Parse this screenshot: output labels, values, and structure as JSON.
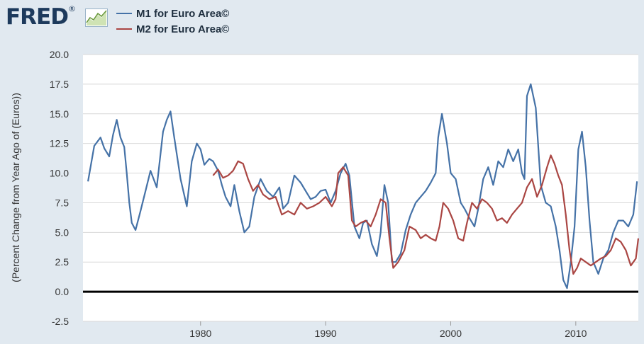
{
  "header": {
    "logo_text": "FRED",
    "logo_mark": "®"
  },
  "colors": {
    "m1": "#4572a7",
    "m2": "#aa4643",
    "zero_line": "#000000",
    "grid": "#d8d8d8",
    "plot_bg": "#ffffff",
    "page_bg": "#e1e9f0"
  },
  "icons": [
    "fred-logo-chart-icon"
  ],
  "chart_data": {
    "type": "line",
    "title": "",
    "xlabel": "",
    "ylabel": "(Percent Change from Year Ago of (Euros))",
    "xlim": [
      1970.6,
      2015.0
    ],
    "ylim": [
      -2.5,
      20.0
    ],
    "grid": "horizontal",
    "legend_position": "top-left",
    "x_ticks": [
      1980,
      1990,
      2000,
      2010
    ],
    "x_tick_labels": [
      "1980",
      "1990",
      "2000",
      "2010"
    ],
    "y_ticks": [
      -2.5,
      0.0,
      2.5,
      5.0,
      7.5,
      10.0,
      12.5,
      15.0,
      17.5,
      20.0
    ],
    "y_tick_labels": [
      "-2.5",
      "0.0",
      "2.5",
      "5.0",
      "7.5",
      "10.0",
      "12.5",
      "15.0",
      "17.5",
      "20.0"
    ],
    "reference_line": 0.0,
    "series": [
      {
        "name": "M1 for Euro Area©",
        "color": "#4572a7",
        "x": [
          1971.0,
          1971.5,
          1972.0,
          1972.3,
          1972.7,
          1973.0,
          1973.3,
          1973.6,
          1973.9,
          1974.1,
          1974.3,
          1974.5,
          1974.8,
          1975.2,
          1975.6,
          1976.0,
          1976.5,
          1977.0,
          1977.3,
          1977.6,
          1977.9,
          1978.4,
          1978.9,
          1979.3,
          1979.7,
          1980.0,
          1980.3,
          1980.7,
          1981.0,
          1981.4,
          1981.7,
          1982.0,
          1982.4,
          1982.7,
          1983.1,
          1983.5,
          1983.9,
          1984.3,
          1984.8,
          1985.3,
          1985.8,
          1986.3,
          1986.6,
          1987.0,
          1987.5,
          1988.0,
          1988.4,
          1988.8,
          1989.2,
          1989.6,
          1990.0,
          1990.4,
          1990.8,
          1991.2,
          1991.6,
          1991.9,
          1992.3,
          1992.7,
          1993.0,
          1993.3,
          1993.7,
          1994.1,
          1994.4,
          1994.7,
          1995.0,
          1995.3,
          1995.6,
          1996.0,
          1996.4,
          1996.8,
          1997.2,
          1997.6,
          1998.0,
          1998.4,
          1998.8,
          1999.0,
          1999.3,
          1999.7,
          2000.0,
          2000.4,
          2000.8,
          2001.1,
          2001.5,
          2001.9,
          2002.2,
          2002.6,
          2003.0,
          2003.4,
          2003.8,
          2004.2,
          2004.6,
          2005.0,
          2005.4,
          2005.7,
          2005.9,
          2006.1,
          2006.4,
          2006.8,
          2007.2,
          2007.6,
          2008.0,
          2008.4,
          2008.7,
          2009.0,
          2009.3,
          2009.6,
          2009.9,
          2010.2,
          2010.5,
          2010.8,
          2011.1,
          2011.4,
          2011.8,
          2012.2,
          2012.6,
          2013.0,
          2013.4,
          2013.8,
          2014.2,
          2014.6,
          2014.9
        ],
        "values": [
          9.3,
          12.3,
          13.0,
          12.1,
          11.4,
          13.2,
          14.5,
          13.0,
          12.2,
          10.0,
          7.5,
          5.8,
          5.2,
          6.8,
          8.5,
          10.2,
          8.8,
          13.5,
          14.5,
          15.2,
          13.0,
          9.5,
          7.2,
          11.0,
          12.5,
          12.0,
          10.7,
          11.2,
          11.0,
          10.2,
          9.0,
          8.0,
          7.2,
          9.0,
          6.8,
          5.0,
          5.5,
          8.0,
          9.5,
          8.5,
          8.0,
          8.8,
          7.0,
          7.5,
          9.8,
          9.2,
          8.5,
          7.8,
          8.0,
          8.5,
          8.6,
          7.5,
          8.5,
          10.0,
          10.8,
          9.8,
          5.5,
          4.5,
          5.8,
          6.0,
          4.0,
          3.0,
          5.0,
          9.0,
          7.5,
          2.5,
          2.5,
          3.2,
          5.2,
          6.5,
          7.5,
          8.0,
          8.5,
          9.2,
          10.0,
          13.0,
          15.0,
          12.5,
          10.0,
          9.5,
          7.5,
          7.0,
          6.2,
          5.5,
          7.0,
          9.5,
          10.5,
          9.0,
          11.0,
          10.5,
          12.0,
          11.0,
          12.0,
          10.0,
          9.5,
          16.5,
          17.5,
          15.5,
          9.0,
          7.5,
          7.2,
          5.5,
          3.5,
          1.0,
          0.3,
          2.5,
          5.5,
          12.0,
          13.5,
          10.5,
          6.0,
          2.5,
          1.5,
          2.8,
          3.5,
          5.0,
          6.0,
          6.0,
          5.5,
          6.5,
          9.3
        ]
      },
      {
        "name": "M2 for Euro Area©",
        "color": "#aa4643",
        "x": [
          1981.0,
          1981.4,
          1981.8,
          1982.2,
          1982.6,
          1983.0,
          1983.4,
          1983.8,
          1984.2,
          1984.6,
          1985.0,
          1985.5,
          1986.0,
          1986.5,
          1987.0,
          1987.5,
          1988.0,
          1988.5,
          1989.0,
          1989.5,
          1990.0,
          1990.5,
          1990.8,
          1991.0,
          1991.4,
          1991.8,
          1992.1,
          1992.4,
          1992.8,
          1993.2,
          1993.6,
          1994.0,
          1994.4,
          1994.8,
          1995.1,
          1995.4,
          1995.8,
          1996.3,
          1996.7,
          1997.2,
          1997.6,
          1998.0,
          1998.4,
          1998.8,
          1999.1,
          1999.4,
          1999.8,
          2000.2,
          2000.6,
          2001.0,
          2001.3,
          2001.7,
          2002.1,
          2002.5,
          2002.9,
          2003.3,
          2003.7,
          2004.1,
          2004.5,
          2004.9,
          2005.3,
          2005.7,
          2006.1,
          2006.5,
          2006.9,
          2007.3,
          2007.7,
          2008.0,
          2008.3,
          2008.6,
          2008.9,
          2009.2,
          2009.5,
          2009.8,
          2010.1,
          2010.4,
          2010.8,
          2011.2,
          2011.6,
          2012.0,
          2012.4,
          2012.8,
          2013.2,
          2013.6,
          2014.0,
          2014.4,
          2014.8,
          2015.0
        ],
        "values": [
          9.8,
          10.3,
          9.6,
          9.8,
          10.2,
          11.0,
          10.8,
          9.5,
          8.5,
          9.0,
          8.2,
          7.8,
          8.0,
          6.5,
          6.8,
          6.5,
          7.5,
          7.0,
          7.2,
          7.5,
          8.0,
          7.2,
          7.8,
          10.0,
          10.5,
          9.8,
          6.0,
          5.5,
          5.8,
          6.0,
          5.5,
          6.5,
          7.8,
          7.5,
          4.5,
          2.0,
          2.5,
          3.5,
          5.5,
          5.2,
          4.5,
          4.8,
          4.5,
          4.3,
          5.5,
          7.5,
          7.0,
          6.0,
          4.5,
          4.3,
          5.8,
          7.5,
          7.0,
          7.8,
          7.5,
          7.0,
          6.0,
          6.2,
          5.8,
          6.5,
          7.0,
          7.5,
          8.8,
          9.5,
          8.0,
          9.0,
          10.5,
          11.5,
          10.8,
          9.8,
          9.0,
          6.5,
          3.5,
          1.5,
          2.0,
          2.8,
          2.5,
          2.2,
          2.5,
          2.8,
          3.0,
          3.5,
          4.5,
          4.2,
          3.5,
          2.2,
          2.8,
          4.5
        ]
      }
    ]
  }
}
